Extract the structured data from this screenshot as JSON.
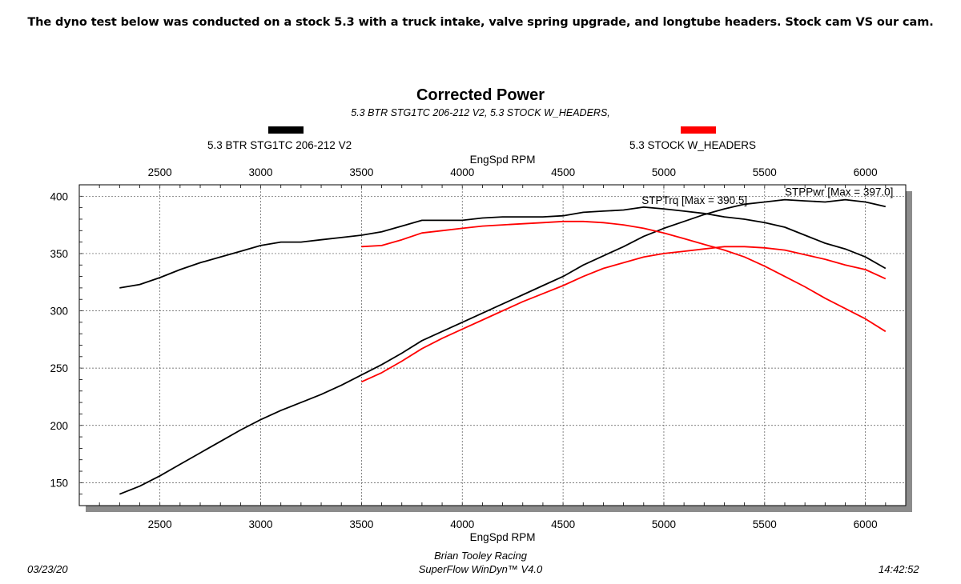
{
  "heading": "The dyno test below was conducted on a stock 5.3 with a truck intake, valve spring upgrade, and longtube headers. Stock cam VS our cam.",
  "chart_data": {
    "type": "line",
    "title": "Corrected Power",
    "subtitle": "5.3 BTR STG1TC 206-212 V2, 5.3 STOCK W_HEADERS,",
    "xlabel": "EngSpd RPM",
    "xlim": [
      2100,
      6200
    ],
    "ylim": [
      130,
      410
    ],
    "x_ticks": [
      "2500",
      "3000",
      "3500",
      "4000",
      "4500",
      "5000",
      "5500",
      "6000"
    ],
    "y_ticks": [
      "400",
      "350",
      "300",
      "250",
      "200",
      "150"
    ],
    "grid": true,
    "legend": [
      {
        "name": "5.3 BTR STG1TC 206-212 V2",
        "color": "#000000"
      },
      {
        "name": "5.3 STOCK W_HEADERS",
        "color": "#ff0000"
      }
    ],
    "annotations": [
      {
        "text": "STPTrq [Max = 390.5]"
      },
      {
        "text": "STPPwr [Max = 397.0]"
      }
    ],
    "series": [
      {
        "color": "#000000",
        "x": [
          2300,
          2400,
          2500,
          2600,
          2700,
          2800,
          2900,
          3000,
          3100,
          3200,
          3300,
          3400,
          3500,
          3600,
          3700,
          3800,
          3900,
          4000,
          4100,
          4200,
          4300,
          4400,
          4500,
          4600,
          4700,
          4800,
          4900,
          5000,
          5100,
          5200,
          5300,
          5400,
          5500,
          5600,
          5700,
          5800,
          5900,
          6000,
          6100
        ],
        "values": [
          320,
          323,
          329,
          336,
          342,
          347,
          352,
          357,
          360,
          360,
          362,
          364,
          366,
          369,
          374,
          379,
          379,
          379,
          381,
          382,
          382,
          382,
          383,
          386,
          387,
          388,
          390.5,
          389,
          387,
          385,
          382,
          380,
          377,
          373,
          366,
          359,
          354,
          347,
          337
        ]
      },
      {
        "color": "#000000",
        "x": [
          2300,
          2400,
          2500,
          2600,
          2700,
          2800,
          2900,
          3000,
          3100,
          3200,
          3300,
          3400,
          3500,
          3600,
          3700,
          3800,
          3900,
          4000,
          4100,
          4200,
          4300,
          4400,
          4500,
          4600,
          4700,
          4800,
          4900,
          5000,
          5100,
          5200,
          5300,
          5400,
          5500,
          5600,
          5700,
          5800,
          5900,
          6000,
          6100
        ],
        "values": [
          140,
          147,
          156,
          166,
          176,
          186,
          196,
          205,
          213,
          220,
          227,
          235,
          244,
          253,
          263,
          274,
          282,
          290,
          298,
          306,
          314,
          322,
          330,
          340,
          348,
          356,
          365,
          372,
          378,
          384,
          389,
          393,
          395,
          397,
          396,
          395,
          397,
          395,
          391
        ]
      },
      {
        "color": "#ff0000",
        "x": [
          3500,
          3600,
          3700,
          3800,
          3900,
          4000,
          4100,
          4200,
          4300,
          4400,
          4500,
          4600,
          4700,
          4800,
          4900,
          5000,
          5100,
          5200,
          5300,
          5400,
          5500,
          5600,
          5700,
          5800,
          5900,
          6000,
          6100
        ],
        "values": [
          356,
          357,
          362,
          368,
          370,
          372,
          374,
          375,
          376,
          377,
          378,
          378,
          377,
          375,
          372,
          368,
          363,
          358,
          353,
          347,
          339,
          330,
          321,
          311,
          302,
          293,
          282
        ]
      },
      {
        "color": "#ff0000",
        "x": [
          3500,
          3600,
          3700,
          3800,
          3900,
          4000,
          4100,
          4200,
          4300,
          4400,
          4500,
          4600,
          4700,
          4800,
          4900,
          5000,
          5100,
          5200,
          5300,
          5400,
          5500,
          5600,
          5700,
          5800,
          5900,
          6000,
          6100
        ],
        "values": [
          238,
          246,
          256,
          267,
          276,
          284,
          292,
          300,
          308,
          315,
          322,
          330,
          337,
          342,
          347,
          350,
          352,
          354,
          356,
          356,
          355,
          353,
          349,
          345,
          340,
          336,
          328
        ]
      }
    ]
  },
  "footer": {
    "date": "03/23/20",
    "time": "14:42:52",
    "credit_line1": "Brian Tooley Racing",
    "credit_line2": "SuperFlow WinDyn™ V4.0"
  }
}
